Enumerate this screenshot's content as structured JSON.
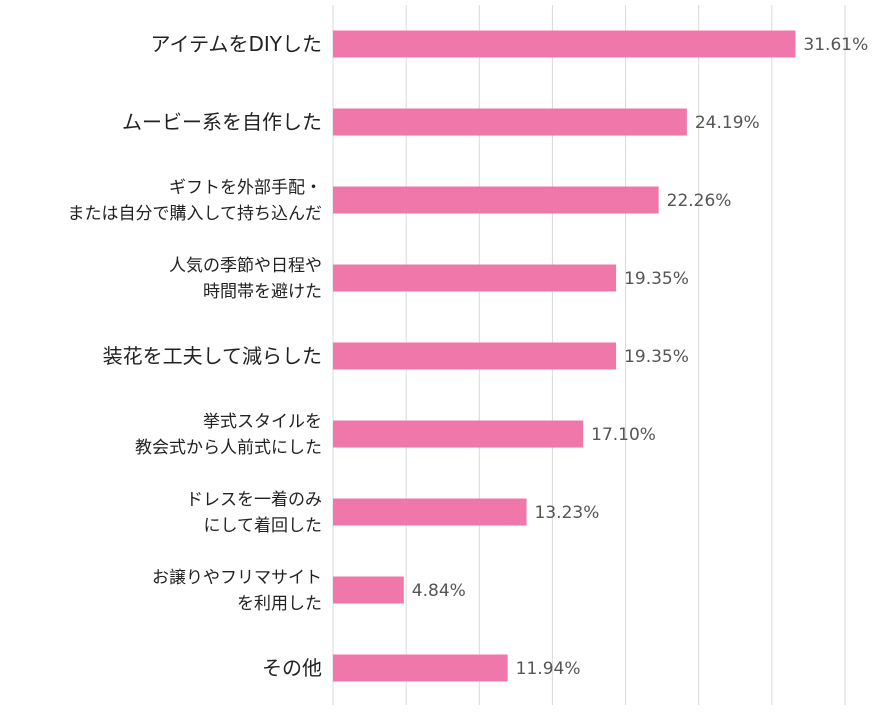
{
  "chart_data": {
    "type": "bar",
    "orientation": "horizontal",
    "categories": [
      [
        "アイテムをDIYした"
      ],
      [
        "ムービー系を自作した"
      ],
      [
        "ギフトを外部手配・",
        "または自分で購入して持ち込んだ"
      ],
      [
        "人気の季節や日程や",
        "時間帯を避けた"
      ],
      [
        "装花を工夫して減らした"
      ],
      [
        "挙式スタイルを",
        "教会式から人前式にした"
      ],
      [
        "ドレスを一着のみ",
        "にして着回した"
      ],
      [
        "お譲りやフリマサイト",
        "を利用した"
      ],
      [
        "その他"
      ]
    ],
    "values": [
      31.61,
      24.19,
      22.26,
      19.35,
      19.35,
      17.1,
      13.23,
      4.84,
      11.94
    ],
    "data_labels": [
      "31.61%",
      "24.19%",
      "22.26%",
      "19.35%",
      "19.35%",
      "17.10%",
      "13.23%",
      "4.84%",
      "11.94%"
    ],
    "xlim": [
      0,
      35
    ],
    "grid_step": 5,
    "grid": true,
    "bar_color": "#EF77AA",
    "grid_color": "#D9D9D9"
  }
}
